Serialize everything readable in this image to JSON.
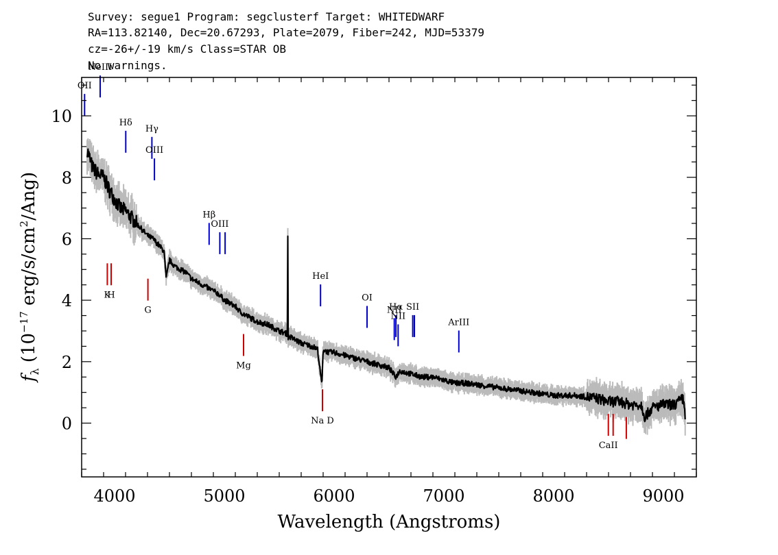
{
  "header": {
    "line1": "Survey: segue1 Program: segclusterf Target: WHITEDWARF",
    "line2": "RA=113.82140, Dec=20.67293, Plate=2079, Fiber=242, MJD=53379",
    "line3": "cz=-26+/-19 km/s Class=STAR OB",
    "line4": "No warnings."
  },
  "chart_data": {
    "type": "line",
    "xlabel": "Wavelength (Angstroms)",
    "ylabel": "f_λ (10^-17 erg/s/cm^2/Ang)",
    "xlim": [
      3700,
      9300
    ],
    "ylim": [
      -1.75,
      11.25
    ],
    "x_ticks": [
      4000,
      5000,
      6000,
      7000,
      8000,
      9000
    ],
    "y_ticks": [
      0,
      2,
      4,
      6,
      8,
      10
    ],
    "grid": false,
    "colors": {
      "flux": "#000000",
      "error": "#bbbbbb",
      "emission": "#0000cc",
      "absorption": "#cc0000"
    },
    "series": [
      {
        "x": [
          3750,
          3800,
          3850,
          3900,
          3950,
          4000,
          4050,
          4100,
          4150,
          4200,
          4250,
          4300,
          4350,
          4400,
          4450,
          4470,
          4500,
          4550,
          4600,
          4650,
          4700,
          4750,
          4800,
          4850,
          4900,
          4950,
          5000,
          5050,
          5100,
          5150,
          5200,
          5300,
          5400,
          5500,
          5575,
          5578,
          5580,
          5600,
          5700,
          5800,
          5850,
          5875,
          5890,
          5900,
          5950,
          6000,
          6100,
          6200,
          6300,
          6400,
          6500,
          6560,
          6600,
          6700,
          6800,
          6900,
          7000,
          7100,
          7200,
          7400,
          7600,
          7800,
          8000,
          8200,
          8400,
          8500,
          8600,
          8700,
          8800,
          8830,
          8900,
          9000,
          9100,
          9180,
          9200
        ],
        "y": [
          8.9,
          8.3,
          8.1,
          8.0,
          7.6,
          7.3,
          7.0,
          6.9,
          6.7,
          6.5,
          6.3,
          6.1,
          6.0,
          5.8,
          5.6,
          4.7,
          5.3,
          5.1,
          5.0,
          4.9,
          4.7,
          4.6,
          4.5,
          4.4,
          4.3,
          4.2,
          4.0,
          3.9,
          3.8,
          3.6,
          3.5,
          3.3,
          3.2,
          3.0,
          2.9,
          6.1,
          2.8,
          2.8,
          2.6,
          2.5,
          2.4,
          1.6,
          1.3,
          2.4,
          2.3,
          2.3,
          2.2,
          2.1,
          2.0,
          1.9,
          1.8,
          1.5,
          1.7,
          1.6,
          1.5,
          1.5,
          1.4,
          1.3,
          1.3,
          1.2,
          1.1,
          1.0,
          0.9,
          0.9,
          0.8,
          0.7,
          0.7,
          0.6,
          0.6,
          0.2,
          0.5,
          0.6,
          0.6,
          0.8,
          0.2
        ]
      }
    ],
    "line_labels": [
      {
        "label": "OII",
        "wavelength": 3727,
        "y": 10.0,
        "kind": "emission"
      },
      {
        "label": "NeIII",
        "wavelength": 3869,
        "y": 10.6,
        "kind": "emission"
      },
      {
        "label": "Hδ",
        "wavelength": 4102,
        "y": 8.8,
        "kind": "emission"
      },
      {
        "label": "Hγ",
        "wavelength": 4340,
        "y": 8.6,
        "kind": "emission"
      },
      {
        "label": "OIII",
        "wavelength": 4363,
        "y": 7.9,
        "kind": "emission"
      },
      {
        "label": "Hβ",
        "wavelength": 4861,
        "y": 5.8,
        "kind": "emission"
      },
      {
        "label": "OIII",
        "wavelength": 4959,
        "y": 5.5,
        "kind": "emission"
      },
      {
        "label": "OIII",
        "wavelength": 5007,
        "y": 5.5,
        "kind": "emission"
      },
      {
        "label": "HeI",
        "wavelength": 5876,
        "y": 3.8,
        "kind": "emission"
      },
      {
        "label": "OI",
        "wavelength": 6300,
        "y": 3.1,
        "kind": "emission"
      },
      {
        "label": "NII",
        "wavelength": 6548,
        "y": 2.7,
        "kind": "emission"
      },
      {
        "label": "Hα",
        "wavelength": 6563,
        "y": 2.8,
        "kind": "emission"
      },
      {
        "label": "NII",
        "wavelength": 6583,
        "y": 2.5,
        "kind": "emission"
      },
      {
        "label": "SII",
        "wavelength": 6716,
        "y": 2.8,
        "kind": "emission"
      },
      {
        "label": "SII",
        "wavelength": 6731,
        "y": 2.8,
        "kind": "emission"
      },
      {
        "label": "ArIII",
        "wavelength": 7136,
        "y": 2.3,
        "kind": "emission"
      },
      {
        "label": "K",
        "wavelength": 3934,
        "y": 5.2,
        "kind": "absorption"
      },
      {
        "label": "H",
        "wavelength": 3969,
        "y": 5.2,
        "kind": "absorption"
      },
      {
        "label": "G",
        "wavelength": 4304,
        "y": 4.7,
        "kind": "absorption"
      },
      {
        "label": "Mg",
        "wavelength": 5175,
        "y": 2.9,
        "kind": "absorption"
      },
      {
        "label": "Na D",
        "wavelength": 5894,
        "y": 1.1,
        "kind": "absorption"
      },
      {
        "label": "CaII",
        "wavelength": 8498,
        "y": 0.3,
        "kind": "absorption"
      },
      {
        "label": "CaII",
        "wavelength": 8542,
        "y": 0.3,
        "kind": "absorption"
      },
      {
        "label": "CaII",
        "wavelength": 8662,
        "y": 0.2,
        "kind": "absorption"
      }
    ]
  }
}
